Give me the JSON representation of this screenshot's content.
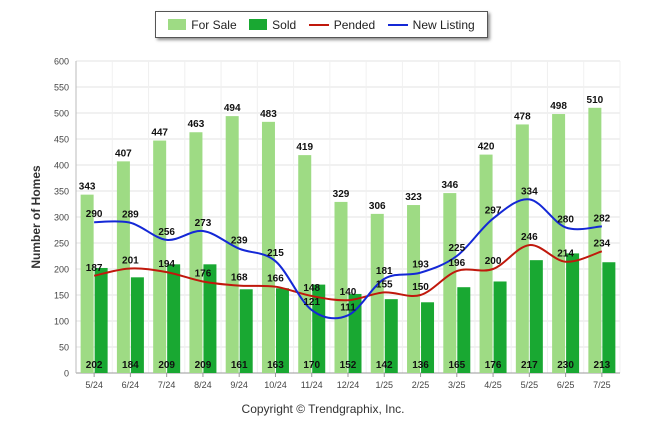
{
  "chart_data": {
    "type": "bar",
    "title": "",
    "xlabel": "",
    "ylabel": "Number of Homes",
    "ylim": [
      0,
      600
    ],
    "yticks": [
      0,
      50,
      100,
      150,
      200,
      250,
      300,
      350,
      400,
      450,
      500,
      550,
      600
    ],
    "grid": true,
    "legend_position": "top-center",
    "categories": [
      "5/24",
      "6/24",
      "7/24",
      "8/24",
      "9/24",
      "10/24",
      "11/24",
      "12/24",
      "1/25",
      "2/25",
      "3/25",
      "4/25",
      "5/25",
      "6/25",
      "7/25"
    ],
    "series": [
      {
        "name": "For Sale",
        "kind": "bar",
        "color": "#9edb84",
        "values": [
          343,
          407,
          447,
          463,
          494,
          483,
          419,
          329,
          306,
          323,
          346,
          420,
          478,
          498,
          510
        ]
      },
      {
        "name": "Sold",
        "kind": "bar",
        "color": "#19a832",
        "values": [
          202,
          184,
          209,
          209,
          161,
          163,
          170,
          152,
          142,
          136,
          165,
          176,
          217,
          230,
          213
        ]
      },
      {
        "name": "Pended",
        "kind": "line",
        "color": "#c0180c",
        "values": [
          187,
          201,
          194,
          176,
          168,
          166,
          148,
          140,
          155,
          150,
          196,
          200,
          246,
          214,
          234
        ]
      },
      {
        "name": "New Listing",
        "kind": "line",
        "color": "#1428d6",
        "values": [
          290,
          289,
          256,
          273,
          239,
          215,
          121,
          111,
          181,
          193,
          225,
          297,
          334,
          280,
          282
        ]
      }
    ]
  },
  "footer": {
    "copyright": "Copyright © Trendgraphix, Inc."
  }
}
